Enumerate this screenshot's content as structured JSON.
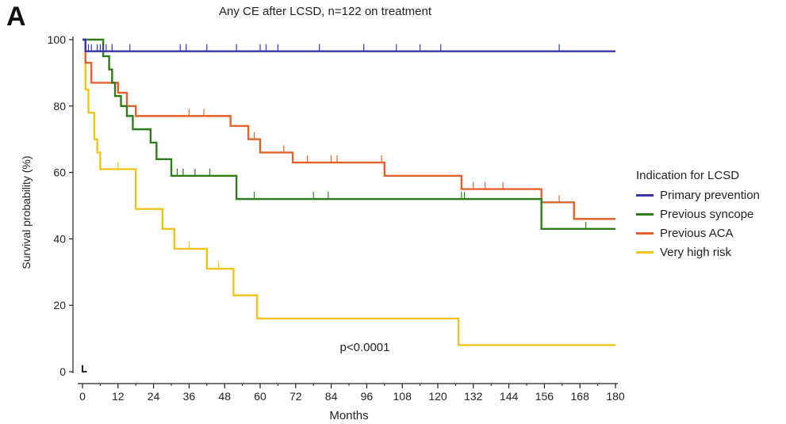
{
  "panel_label": "A",
  "chart_data": {
    "type": "line",
    "title": "Any CE after LCSD, n=122 on treatment",
    "xlabel": "Months",
    "ylabel": "Survival probability (%)",
    "xlim": [
      0,
      180
    ],
    "ylim": [
      0,
      100
    ],
    "x_ticks": [
      0,
      12,
      24,
      36,
      48,
      60,
      72,
      84,
      96,
      108,
      120,
      132,
      144,
      156,
      168,
      180
    ],
    "y_ticks": [
      0,
      20,
      40,
      60,
      80,
      100
    ],
    "grid": false,
    "step": true,
    "legend_title": "Indication for LCSD",
    "legend_position": "right",
    "annotation": "p<0.0001",
    "series": [
      {
        "name": "Primary prevention",
        "color": "#3a35a8",
        "points": [
          [
            0,
            100
          ],
          [
            1,
            96.5
          ],
          [
            180,
            96.5
          ]
        ],
        "censored": [
          1,
          2,
          3,
          5,
          6,
          7,
          8,
          10,
          16,
          33,
          35,
          42,
          52,
          60,
          62,
          66,
          80,
          95,
          106,
          114,
          121,
          161
        ]
      },
      {
        "name": "Previous syncope",
        "color": "#2e7d1a",
        "points": [
          [
            0,
            100
          ],
          [
            7,
            95
          ],
          [
            9,
            91
          ],
          [
            10,
            87
          ],
          [
            11,
            83
          ],
          [
            13,
            80
          ],
          [
            15,
            77
          ],
          [
            17,
            73
          ],
          [
            23,
            69
          ],
          [
            25,
            64
          ],
          [
            30,
            59
          ],
          [
            52,
            52
          ],
          [
            155,
            43
          ],
          [
            180,
            43
          ]
        ],
        "censored": [
          32,
          34,
          38,
          43,
          52,
          58,
          78,
          83,
          128,
          129,
          170
        ]
      },
      {
        "name": "Previous ACA",
        "color": "#e2622b",
        "points": [
          [
            0,
            100
          ],
          [
            1,
            93
          ],
          [
            3,
            87
          ],
          [
            12,
            84
          ],
          [
            15,
            80
          ],
          [
            18,
            77
          ],
          [
            50,
            74
          ],
          [
            56,
            70
          ],
          [
            60,
            66
          ],
          [
            71,
            63
          ],
          [
            102,
            59
          ],
          [
            128,
            55
          ],
          [
            155,
            51
          ],
          [
            166,
            46
          ],
          [
            180,
            46
          ]
        ],
        "censored": [
          36,
          41,
          58,
          68,
          76,
          84,
          86,
          101,
          132,
          136,
          142,
          161
        ]
      },
      {
        "name": "Very high risk",
        "color": "#f0c418",
        "points": [
          [
            0,
            100
          ],
          [
            1,
            85
          ],
          [
            2,
            78
          ],
          [
            4,
            70
          ],
          [
            5,
            66
          ],
          [
            6,
            61
          ],
          [
            18,
            49
          ],
          [
            27,
            43
          ],
          [
            31,
            37
          ],
          [
            42,
            31
          ],
          [
            51,
            23
          ],
          [
            59,
            16
          ],
          [
            127,
            8
          ],
          [
            180,
            8
          ]
        ],
        "censored": [
          12,
          36,
          46
        ]
      }
    ]
  }
}
